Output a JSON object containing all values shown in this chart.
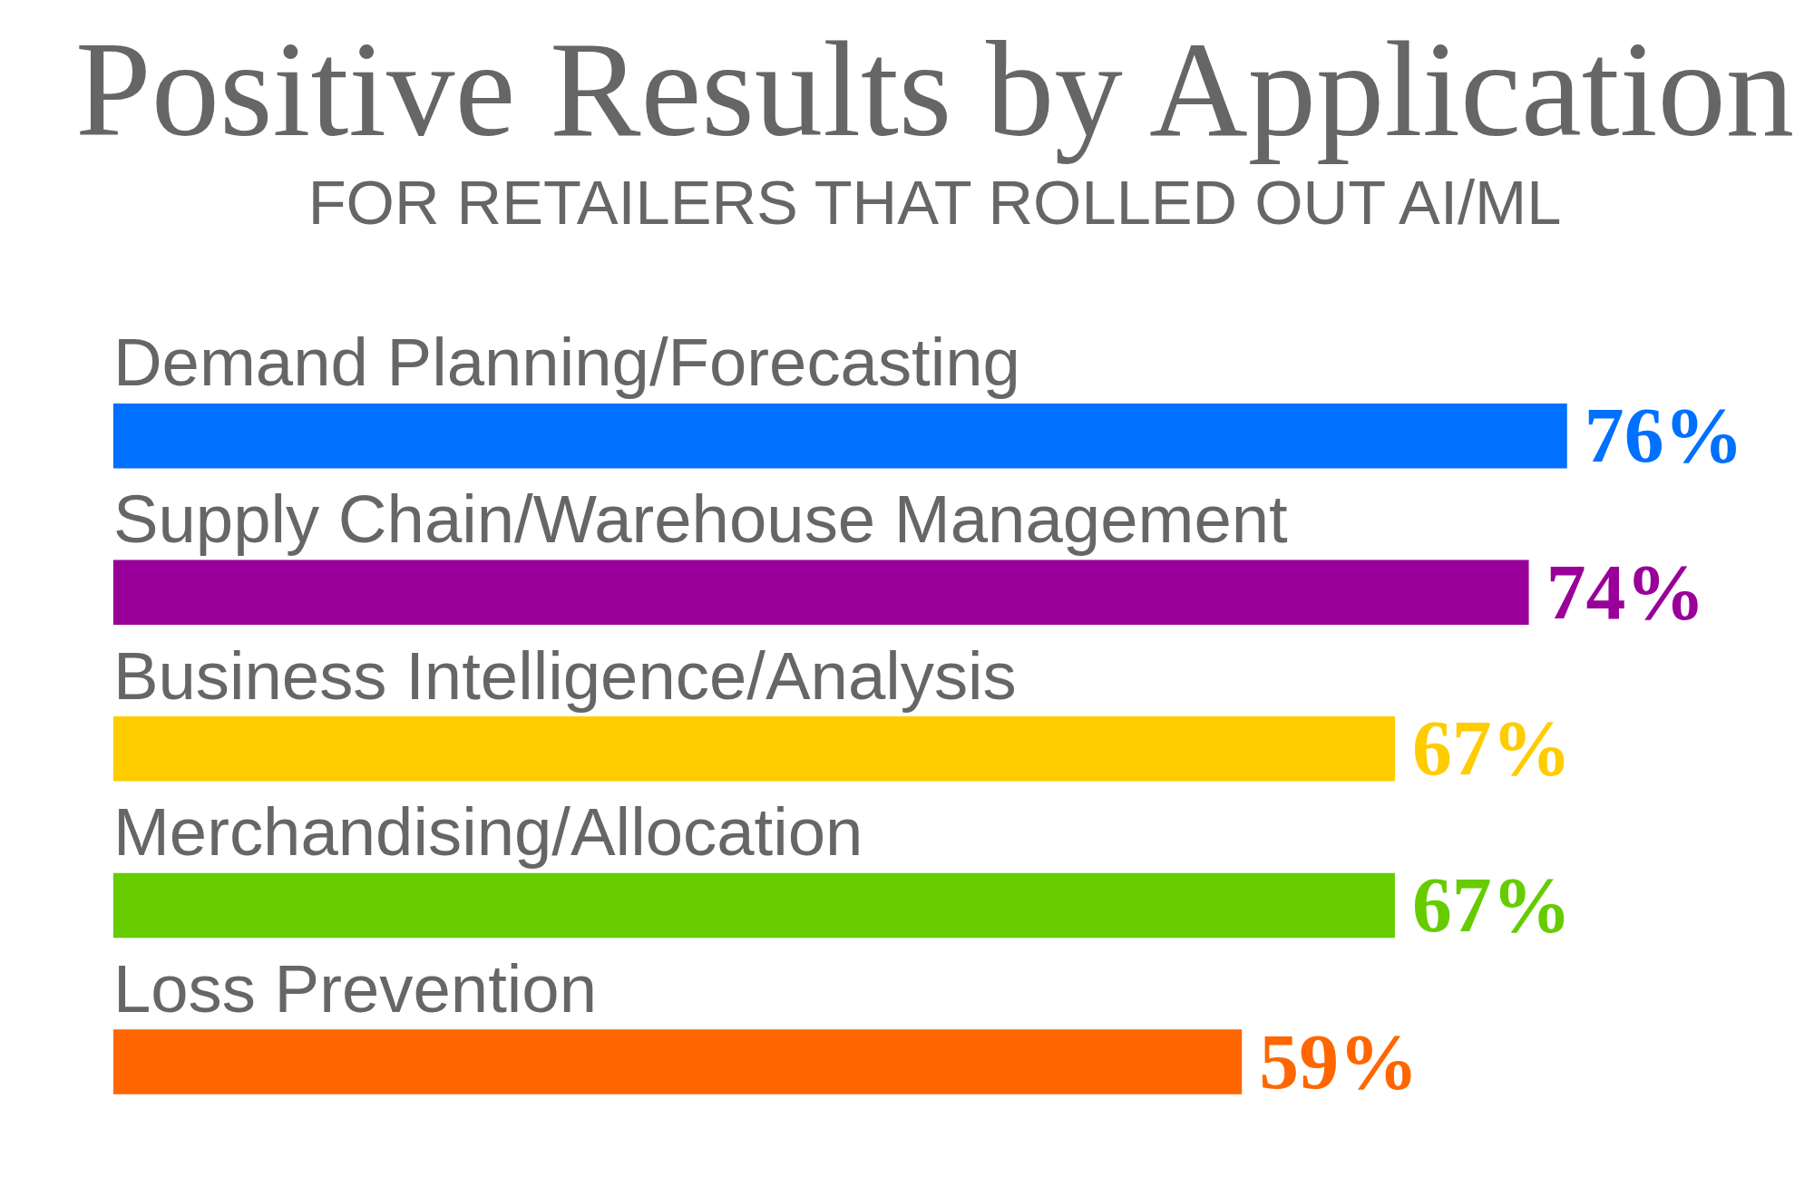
{
  "chart_data": {
    "type": "bar",
    "orientation": "horizontal",
    "title": "Positive Results by Application",
    "subtitle": "FOR RETAILERS THAT ROLLED OUT AI/ML",
    "categories": [
      "Demand Planning/Forecasting",
      "Supply Chain/Warehouse Management",
      "Business Intelligence/Analysis",
      "Merchandising/Allocation",
      "Loss Prevention"
    ],
    "values": [
      76,
      74,
      67,
      67,
      59
    ],
    "value_labels": [
      "76%",
      "74%",
      "67%",
      "67%",
      "59%"
    ],
    "colors": [
      "#0070ff",
      "#990099",
      "#ffcc00",
      "#66cc00",
      "#ff6600"
    ]
  }
}
